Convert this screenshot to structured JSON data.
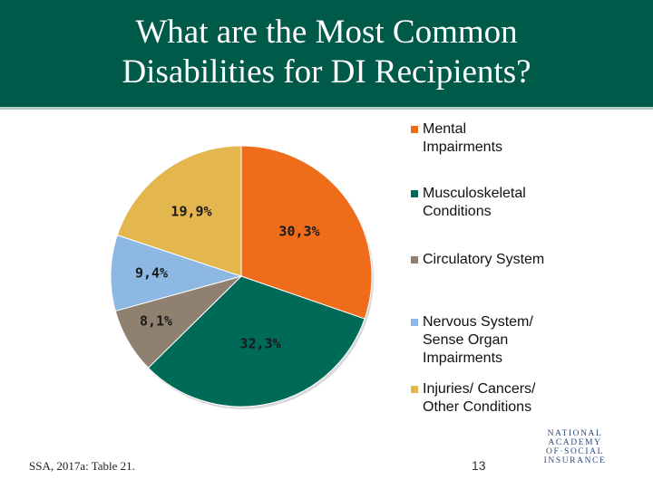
{
  "header": {
    "title_line1": "What are the Most Common",
    "title_line2": "Disabilities for DI Recipients?",
    "background": "#005a49"
  },
  "chart_data": {
    "type": "pie",
    "title": "What are the Most Common Disabilities for DI Recipients?",
    "start": "12 o'clock",
    "direction": "clockwise",
    "slices": [
      {
        "label": "Mental Impairments",
        "label_lines": [
          "Mental",
          "Impairments"
        ],
        "value": 30.3,
        "data_label": "30,3%",
        "color": "#ef6c1a"
      },
      {
        "label": "Musculoskeletal Conditions",
        "label_lines": [
          "Musculoskeletal",
          "Conditions"
        ],
        "value": 32.3,
        "data_label": "32,3%",
        "color": "#006a58"
      },
      {
        "label": "Circulatory System",
        "label_lines": [
          "Circulatory System"
        ],
        "value": 8.1,
        "data_label": "8,1%",
        "color": "#8f8070"
      },
      {
        "label": "Nervous System/ Sense Organ Impairments",
        "label_lines": [
          "Nervous System/",
          "Sense Organ",
          "Impairments"
        ],
        "value": 9.4,
        "data_label": "9,4%",
        "color": "#8cb8e3"
      },
      {
        "label": "Injuries/ Cancers/ Other Conditions",
        "label_lines": [
          "Injuries/ Cancers/",
          "Other Conditions"
        ],
        "value": 19.9,
        "data_label": "19,9%",
        "color": "#e3b64e"
      }
    ],
    "legend_position": "right"
  },
  "footer": {
    "source": "SSA, 2017a: Table 21.",
    "page_number": "13",
    "logo_text": [
      "NATIONAL",
      "ACADEMY",
      "OF·SOCIAL",
      "INSURANCE"
    ]
  }
}
